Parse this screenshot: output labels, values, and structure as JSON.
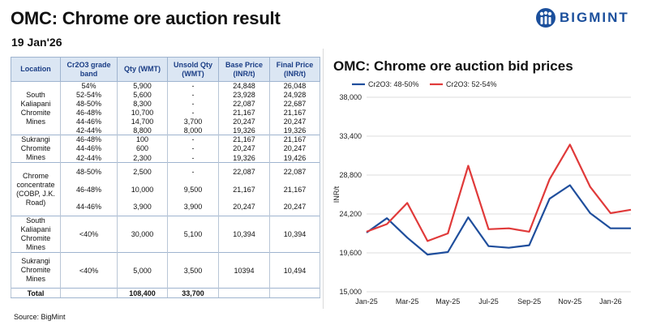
{
  "page": {
    "title": "OMC: Chrome ore auction result",
    "date": "19 Jan'26",
    "source": "Source: BigMint",
    "brand": "BIGMINT",
    "brand_color": "#1b4f9c"
  },
  "table": {
    "headers": [
      "Location",
      "Cr2O3 grade band",
      "Qty (WMT)",
      "Unsold Qty (WMT)",
      "Base Price (INR/t)",
      "Final Price (INR/t)"
    ],
    "groups": [
      {
        "location": [
          "South",
          "Kaliapani",
          "Chromite",
          "Mines"
        ],
        "rows": [
          {
            "grade": "54%",
            "qty": "5,900",
            "unsold": "-",
            "base": "24,848",
            "final": "26,048"
          },
          {
            "grade": "52-54%",
            "qty": "5,600",
            "unsold": "-",
            "base": "23,928",
            "final": "24,928"
          },
          {
            "grade": "48-50%",
            "qty": "8,300",
            "unsold": "-",
            "base": "22,087",
            "final": "22,687"
          },
          {
            "grade": "46-48%",
            "qty": "10,700",
            "unsold": "-",
            "base": "21,167",
            "final": "21,167"
          },
          {
            "grade": "44-46%",
            "qty": "14,700",
            "unsold": "3,700",
            "base": "20,247",
            "final": "20,247"
          },
          {
            "grade": "42-44%",
            "qty": "8,800",
            "unsold": "8,000",
            "base": "19,326",
            "final": "19,326"
          }
        ]
      },
      {
        "location": [
          "Sukrangi",
          "Chromite",
          "Mines"
        ],
        "rows": [
          {
            "grade": "46-48%",
            "qty": "100",
            "unsold": "-",
            "base": "21,167",
            "final": "21,167"
          },
          {
            "grade": "44-46%",
            "qty": "600",
            "unsold": "-",
            "base": "20,247",
            "final": "20,247"
          },
          {
            "grade": "42-44%",
            "qty": "2,300",
            "unsold": "-",
            "base": "19,326",
            "final": "19,426"
          }
        ]
      },
      {
        "location": [
          "Chrome",
          "concentrate",
          "(COBP, J.K.",
          "Road)"
        ],
        "rows": [
          {
            "grade": "48-50%",
            "qty": "2,500",
            "unsold": "-",
            "base": "22,087",
            "final": "22,087"
          },
          {
            "grade": "46-48%",
            "qty": "10,000",
            "unsold": "9,500",
            "base": "21,167",
            "final": "21,167"
          },
          {
            "grade": "44-46%",
            "qty": "3,900",
            "unsold": "3,900",
            "base": "20,247",
            "final": "20,247"
          }
        ]
      },
      {
        "location": [
          "South",
          "Kaliapani",
          "Chromite",
          "Mines"
        ],
        "rows": [
          {
            "grade": "<40%",
            "qty": "30,000",
            "unsold": "5,100",
            "base": "10,394",
            "final": "10,394"
          }
        ]
      },
      {
        "location": [
          "Sukrangi",
          "Chromite",
          "Mines"
        ],
        "rows": [
          {
            "grade": "<40%",
            "qty": "5,000",
            "unsold": "3,500",
            "base": "10394",
            "final": "10,494"
          }
        ]
      }
    ],
    "total": {
      "label": "Total",
      "qty": "108,400",
      "unsold": "33,700"
    }
  },
  "chart_data": {
    "type": "line",
    "title": "OMC: Chrome ore auction bid prices",
    "ylabel": "INR/t",
    "xlabel": "",
    "ylim": [
      15000,
      38000
    ],
    "yticks": [
      "15,000",
      "19,600",
      "24,200",
      "28,800",
      "33,400",
      "38,000"
    ],
    "x_tick_labels": [
      "Jan-25",
      "Mar-25",
      "May-25",
      "Jul-25",
      "Sep-25",
      "Nov-25",
      "Jan-26"
    ],
    "n_points": 14,
    "series": [
      {
        "name": "Cr2O3: 48-50%",
        "color": "#1f4e9c",
        "values": [
          22000,
          23700,
          21400,
          19400,
          19700,
          23800,
          20400,
          20200,
          20500,
          26000,
          27600,
          24300,
          22500,
          22500
        ]
      },
      {
        "name": "Cr2O3: 52-54%",
        "color": "#e03a3a",
        "values": [
          22100,
          23000,
          25500,
          21000,
          21900,
          29900,
          22400,
          22500,
          22100,
          28300,
          32400,
          27400,
          24300,
          24700
        ]
      }
    ]
  }
}
